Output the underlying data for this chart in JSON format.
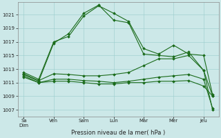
{
  "xlabel": "Pression niveau de la mer( hPa )",
  "xtick_labels": [
    "Sa\nDim",
    "Ven",
    "Sam",
    "Lun",
    "Mar",
    "Mer",
    "Jeu"
  ],
  "xtick_positions": [
    0,
    1,
    2,
    3,
    4,
    5,
    6
  ],
  "ytick_values": [
    1007,
    1009,
    1011,
    1013,
    1015,
    1017,
    1019,
    1021
  ],
  "ylim": [
    1006.0,
    1022.8
  ],
  "xlim": [
    -0.2,
    6.5
  ],
  "background_color": "#cce8e8",
  "grid_color": "#99cccc",
  "line_color": "#1a6b1a",
  "series": [
    {
      "x": [
        0.0,
        0.5,
        1.0,
        1.5,
        2.0,
        2.5,
        3.0,
        3.5,
        4.0,
        4.5,
        5.0,
        5.5,
        6.0,
        6.3
      ],
      "y": [
        1012.5,
        1011.5,
        1017.0,
        1017.8,
        1020.8,
        1022.3,
        1021.2,
        1020.0,
        1016.0,
        1015.2,
        1016.5,
        1015.2,
        1015.0,
        1009.2
      ]
    },
    {
      "x": [
        0.0,
        0.5,
        1.0,
        1.5,
        2.0,
        2.5,
        3.0,
        3.5,
        4.0,
        4.5,
        5.0,
        5.5,
        6.0,
        6.3
      ],
      "y": [
        1012.2,
        1011.2,
        1016.8,
        1018.2,
        1021.2,
        1022.4,
        1020.2,
        1019.8,
        1015.2,
        1015.0,
        1014.8,
        1015.5,
        1012.8,
        1009.0
      ]
    },
    {
      "x": [
        0.0,
        0.5,
        1.0,
        1.5,
        2.0,
        2.5,
        3.0,
        3.5,
        4.0,
        4.5,
        5.0,
        5.5,
        6.0,
        6.3
      ],
      "y": [
        1012.3,
        1011.3,
        1012.3,
        1012.2,
        1012.0,
        1012.0,
        1012.2,
        1012.5,
        1013.5,
        1014.5,
        1014.5,
        1015.0,
        1012.8,
        1007.0
      ]
    },
    {
      "x": [
        0.0,
        0.5,
        1.0,
        1.5,
        2.0,
        2.5,
        3.0,
        3.5,
        4.0,
        4.5,
        5.0,
        5.5,
        6.0,
        6.3
      ],
      "y": [
        1012.0,
        1011.0,
        1011.5,
        1011.5,
        1011.3,
        1011.2,
        1011.0,
        1011.2,
        1011.5,
        1011.8,
        1012.0,
        1012.2,
        1011.5,
        1007.2
      ]
    },
    {
      "x": [
        0.0,
        0.5,
        1.0,
        1.5,
        2.0,
        2.5,
        3.0,
        3.5,
        4.0,
        4.5,
        5.0,
        5.5,
        6.0,
        6.3
      ],
      "y": [
        1011.8,
        1011.0,
        1011.2,
        1011.2,
        1011.0,
        1010.8,
        1010.8,
        1011.0,
        1011.0,
        1011.2,
        1011.2,
        1011.3,
        1010.5,
        1009.0
      ]
    }
  ]
}
